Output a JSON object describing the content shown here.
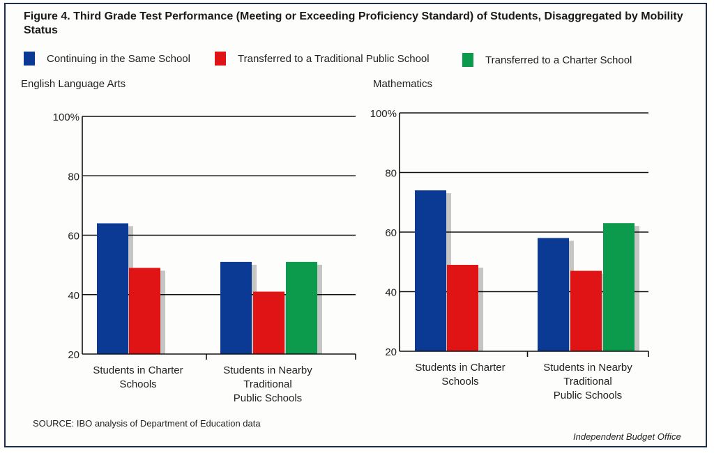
{
  "title": "Figure 4. Third Grade Test Performance (Meeting or Exceeding Proficiency Standard) of Students, Disaggregated by Mobility Status",
  "legend": [
    {
      "label": "Continuing in the Same School",
      "color": "#0b3a94"
    },
    {
      "label": "Transferred to a Traditional Public School",
      "color": "#e01414"
    },
    {
      "label": "Transferred to a Charter School",
      "color": "#0c9a4c"
    }
  ],
  "chart_data": [
    {
      "type": "bar",
      "title": "English Language Arts",
      "categories": [
        [
          "Students in Charter",
          "Schools"
        ],
        [
          "Students in Nearby",
          "Traditional",
          "Public Schools"
        ]
      ],
      "series": [
        {
          "name": "Continuing in the Same School",
          "values": [
            64,
            51
          ]
        },
        {
          "name": "Transferred to a Traditional Public School",
          "values": [
            49,
            41
          ]
        },
        {
          "name": "Transferred to a Charter School",
          "values": [
            null,
            51
          ]
        }
      ],
      "yticks": [
        "100%",
        "80",
        "60",
        "40",
        "20"
      ],
      "ylim": [
        20,
        100
      ],
      "grid": true
    },
    {
      "type": "bar",
      "title": "Mathematics",
      "categories": [
        [
          "Students in Charter",
          "Schools"
        ],
        [
          "Students in Nearby",
          "Traditional",
          "Public Schools"
        ]
      ],
      "series": [
        {
          "name": "Continuing in the Same School",
          "values": [
            74,
            58
          ]
        },
        {
          "name": "Transferred to a Traditional Public School",
          "values": [
            49,
            47
          ]
        },
        {
          "name": "Transferred to a Charter School",
          "values": [
            null,
            63
          ]
        }
      ],
      "yticks": [
        "100%",
        "80",
        "60",
        "40",
        "20"
      ],
      "ylim": [
        20,
        100
      ],
      "grid": true
    }
  ],
  "source": "SOURCE: IBO analysis of Department of Education data",
  "credit": "Independent Budget Office"
}
